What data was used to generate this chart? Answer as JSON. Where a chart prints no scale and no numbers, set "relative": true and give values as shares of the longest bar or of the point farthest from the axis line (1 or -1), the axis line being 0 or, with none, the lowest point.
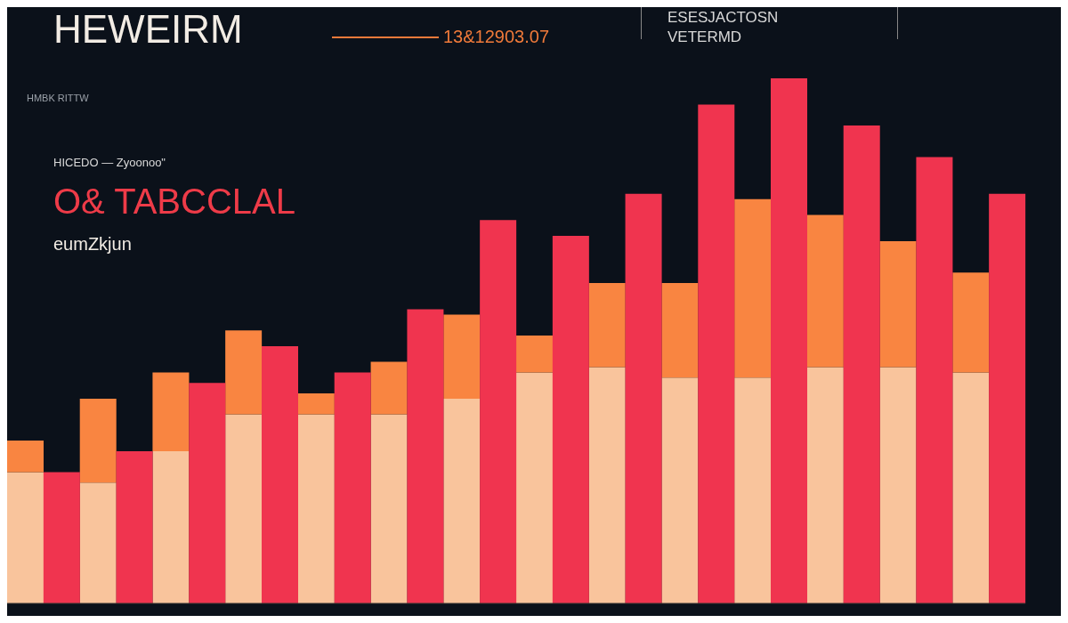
{
  "chart_data": {
    "type": "bar",
    "title": "HEWEIRM",
    "relative": true,
    "stacked": true,
    "legend": false,
    "categories": [
      null,
      null,
      null,
      null,
      null,
      null,
      null,
      null,
      null,
      null,
      null,
      null,
      null,
      null,
      null,
      null,
      null,
      null,
      null,
      null,
      null,
      null,
      null,
      null,
      null,
      null,
      null,
      null
    ],
    "series": [
      {
        "color": "#f9c49c",
        "values": [
          0.25,
          null,
          0.23,
          null,
          0.29,
          null,
          0.36,
          null,
          0.36,
          null,
          0.36,
          null,
          0.39,
          null,
          0.44,
          null,
          0.45,
          null,
          0.43,
          null,
          0.43,
          null,
          0.45,
          null,
          0.45,
          null,
          0.44,
          null
        ]
      },
      {
        "color": "#f98541",
        "values": [
          0.06,
          null,
          0.16,
          null,
          0.15,
          null,
          0.16,
          null,
          0.04,
          null,
          0.1,
          null,
          0.16,
          null,
          0.07,
          null,
          0.16,
          null,
          0.18,
          null,
          0.34,
          null,
          0.29,
          null,
          0.24,
          null,
          0.19,
          null
        ]
      },
      {
        "color": "#f0344f",
        "values": [
          null,
          0.25,
          null,
          0.29,
          null,
          0.42,
          null,
          0.49,
          null,
          0.44,
          null,
          0.56,
          null,
          0.73,
          null,
          0.7,
          null,
          0.78,
          null,
          0.95,
          null,
          1,
          null,
          0.91,
          null,
          0.85,
          null,
          0.78
        ]
      }
    ],
    "annotations": [
      "13&12903.07",
      "ESESJACTOSN",
      "VETERMD",
      "HMBK RITTW",
      "HICEDO — Zyoonoo\"",
      "O& TABCCLAL",
      "eumZkjun"
    ]
  }
}
